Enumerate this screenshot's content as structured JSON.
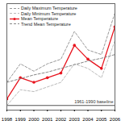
{
  "chart_data": {
    "type": "line",
    "x": [
      1998,
      1999,
      2000,
      2001,
      2002,
      2003,
      2004,
      2005,
      2006
    ],
    "series": [
      {
        "name": "Daily Maximum Temperature",
        "color": "#999999",
        "line_style": "dashed",
        "values": [
          2.5,
          4.5,
          3.7,
          4.5,
          5.0,
          8.0,
          6.0,
          5.5,
          10.0
        ]
      },
      {
        "name": "Daily Minimum Temperature",
        "color": "#bbbbbb",
        "line_style": "dashed",
        "values": [
          0.0,
          1.7,
          1.5,
          2.0,
          2.5,
          4.5,
          4.0,
          3.0,
          7.0
        ]
      },
      {
        "name": "Mean Temperature",
        "color": "#e8141e",
        "line_style": "solid",
        "marker": "circle",
        "values": [
          0.7,
          3.0,
          2.5,
          3.0,
          3.5,
          6.5,
          5.0,
          4.0,
          8.5
        ]
      },
      {
        "name": "Trend Mean Temperature",
        "color": "#888888",
        "line_style": "dashed",
        "values": [
          2.5,
          2.9,
          3.3,
          3.6,
          4.0,
          4.4,
          4.8,
          5.1,
          5.5
        ]
      }
    ],
    "baseline": {
      "value": 0,
      "label": "1961-1990 baseline"
    },
    "xlim": [
      1998,
      2006
    ],
    "xticks": [
      1998,
      1999,
      2000,
      2001,
      2002,
      2003,
      2004,
      2005,
      2006
    ],
    "ylim": [
      -0.5,
      11
    ],
    "yticks": [],
    "tick_labels": "x",
    "grid": false,
    "legend": "top-left"
  }
}
